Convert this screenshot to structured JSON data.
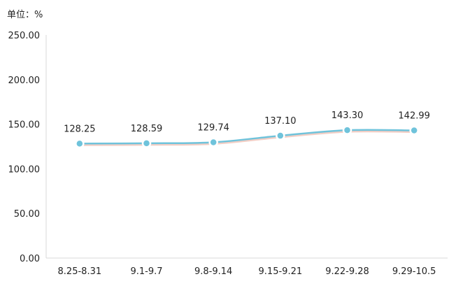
{
  "chart_data": {
    "type": "line",
    "unit_label": "单位：%",
    "categories": [
      "8.25-8.31",
      "9.1-9.7",
      "9.8-9.14",
      "9.15-9.21",
      "9.22-9.28",
      "9.29-10.5"
    ],
    "series": [
      {
        "values": [
          128.25,
          128.59,
          129.74,
          137.1,
          143.3,
          142.99
        ]
      }
    ],
    "data_labels": [
      "128.25",
      "128.59",
      "129.74",
      "137.10",
      "143.30",
      "142.99"
    ],
    "y_ticks": [
      "0.00",
      "50.00",
      "100.00",
      "150.00",
      "200.00",
      "250.00"
    ],
    "ylim": [
      0,
      250
    ],
    "grid": false,
    "colors": {
      "line": "#6fc3db",
      "shadow": "#e8a595",
      "marker_fill": "#6fc3db",
      "marker_stroke": "#ffffff"
    }
  }
}
